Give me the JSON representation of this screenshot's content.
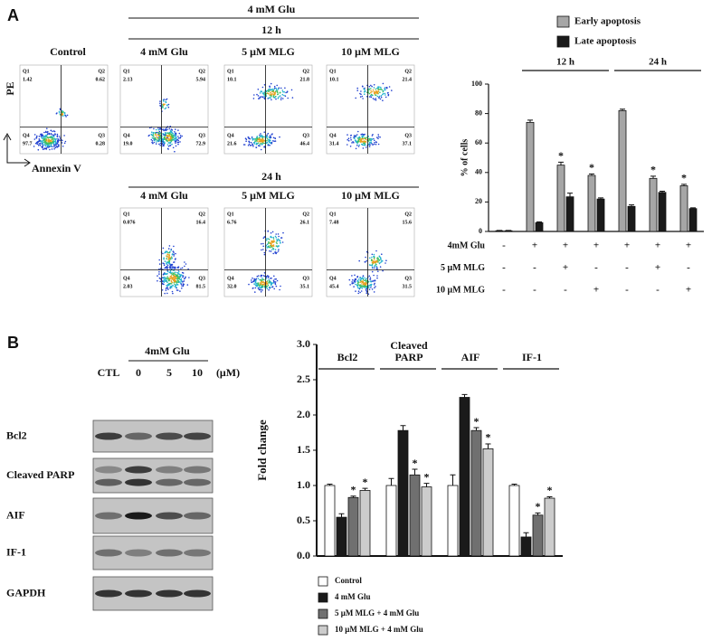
{
  "panel_labels": [
    "A",
    "B"
  ],
  "flow_cytometry": {
    "treatment_header": "4 mM Glu",
    "time_12h": "12 h",
    "time_24h": "24 h",
    "y_axis_label": "PE",
    "x_axis_label": "Annexin V",
    "plots": [
      {
        "title": "Control",
        "quadrants": [
          {
            "name": "Q1",
            "value": "1.42"
          },
          {
            "name": "Q2",
            "value": "0.62"
          },
          {
            "name": "Q4",
            "value": "97.7"
          },
          {
            "name": "Q3",
            "value": "0.28"
          }
        ]
      },
      {
        "title": "4 mM Glu",
        "quadrants": [
          {
            "name": "Q1",
            "value": "2.13"
          },
          {
            "name": "Q2",
            "value": "5.94"
          },
          {
            "name": "Q4",
            "value": "19.0"
          },
          {
            "name": "Q3",
            "value": "72.9"
          }
        ]
      },
      {
        "title": "5 μM MLG",
        "quadrants": [
          {
            "name": "Q1",
            "value": "10.1"
          },
          {
            "name": "Q2",
            "value": "21.8"
          },
          {
            "name": "Q4",
            "value": "21.6"
          },
          {
            "name": "Q3",
            "value": "46.4"
          }
        ]
      },
      {
        "title": "10 μM MLG",
        "quadrants": [
          {
            "name": "Q1",
            "value": "10.1"
          },
          {
            "name": "Q2",
            "value": "21.4"
          },
          {
            "name": "Q4",
            "value": "31.4"
          },
          {
            "name": "Q3",
            "value": "37.1"
          }
        ]
      },
      {
        "title": "4 mM Glu",
        "quadrants": [
          {
            "name": "Q1",
            "value": "0.076"
          },
          {
            "name": "Q2",
            "value": "16.4"
          },
          {
            "name": "Q4",
            "value": "2.03"
          },
          {
            "name": "Q3",
            "value": "81.5"
          }
        ]
      },
      {
        "title": "5 μM MLG",
        "quadrants": [
          {
            "name": "Q1",
            "value": "6.76"
          },
          {
            "name": "Q2",
            "value": "26.1"
          },
          {
            "name": "Q4",
            "value": "32.0"
          },
          {
            "name": "Q3",
            "value": "35.1"
          }
        ]
      },
      {
        "title": "10 μM MLG",
        "quadrants": [
          {
            "name": "Q1",
            "value": "7.48"
          },
          {
            "name": "Q2",
            "value": "15.6"
          },
          {
            "name": "Q4",
            "value": "45.4"
          },
          {
            "name": "Q3",
            "value": "31.5"
          }
        ]
      }
    ]
  },
  "western_blot": {
    "treatment": "4mM Glu",
    "lanes": [
      "CTL",
      "0",
      "5",
      "10"
    ],
    "unit": "(μM)",
    "proteins": [
      "Bcl2",
      "Cleaved PARP",
      "AIF",
      "IF-1",
      "GAPDH"
    ]
  },
  "chart_data": [
    {
      "type": "bar",
      "y_label": "% of cells",
      "categories": [
        null,
        null,
        null,
        null,
        null,
        null,
        null
      ],
      "group_labels": [
        "12 h",
        "24 h"
      ],
      "legend": "top",
      "ylim": [
        0,
        100
      ],
      "yticks": [
        0,
        20,
        40,
        60,
        80,
        100
      ],
      "series": [
        {
          "name": "Early apoptosis",
          "color": "#a6a6a6",
          "values": [
            0.5,
            74,
            45,
            38,
            82,
            36,
            31
          ],
          "errors": [
            0.2,
            1.5,
            2,
            1,
            1,
            1.5,
            1
          ],
          "markers": [
            null,
            null,
            "*",
            "*",
            null,
            "*",
            "*"
          ]
        },
        {
          "name": "Late apoptosis",
          "color": "#1a1a1a",
          "values": [
            0.5,
            6,
            23.5,
            22,
            17,
            26.5,
            15.5
          ],
          "errors": [
            0.2,
            0.5,
            2.5,
            0.8,
            1,
            0.8,
            0.5
          ],
          "markers": [
            null,
            null,
            null,
            null,
            null,
            null,
            null
          ]
        }
      ],
      "conditions": [
        {
          "label": "4mM Glu",
          "values": [
            "-",
            "+",
            "+",
            "+",
            "+",
            "+",
            "+"
          ]
        },
        {
          "label": "5 μM MLG",
          "values": [
            "-",
            "-",
            "+",
            "-",
            "-",
            "+",
            "-"
          ]
        },
        {
          "label": "10 μM MLG",
          "values": [
            "-",
            "-",
            "-",
            "+",
            "-",
            "-",
            "+"
          ]
        }
      ]
    },
    {
      "type": "bar",
      "y_label": "Fold change",
      "categories": [
        "Bcl2",
        "Cleaved PARP",
        "AIF",
        "IF-1"
      ],
      "legend": "bottom",
      "ylim": [
        0,
        3
      ],
      "yticks": [
        {
          "value": 0,
          "label": "0.0"
        },
        {
          "value": 0.5,
          "label": "0.5"
        },
        {
          "value": 1,
          "label": "1.0"
        },
        {
          "value": 1.5,
          "label": "1.5"
        },
        {
          "value": 2,
          "label": "2.0"
        },
        {
          "value": 2.5,
          "label": "2.5"
        },
        {
          "value": 3,
          "label": "3.0"
        }
      ],
      "series": [
        {
          "name": "Control",
          "color": "#ffffff",
          "values": [
            1.0,
            1.0,
            1.0,
            1.0
          ],
          "errors": [
            0.02,
            0.1,
            0.15,
            0.02
          ],
          "markers": [
            null,
            null,
            null,
            null
          ]
        },
        {
          "name": "4 mM Glu",
          "color": "#1a1a1a",
          "values": [
            0.55,
            1.78,
            2.25,
            0.27
          ],
          "errors": [
            0.05,
            0.07,
            0.04,
            0.06
          ],
          "markers": [
            null,
            null,
            null,
            null
          ]
        },
        {
          "name": "5 μM MLG + 4 mM Glu",
          "color": "#707070",
          "values": [
            0.83,
            1.15,
            1.78,
            0.58
          ],
          "errors": [
            0.02,
            0.08,
            0.04,
            0.03
          ],
          "markers": [
            "*",
            "*",
            "*",
            "*"
          ]
        },
        {
          "name": "10 μM MLG + 4 mM Glu",
          "color": "#cccccc",
          "values": [
            0.93,
            0.98,
            1.52,
            0.82
          ],
          "errors": [
            0.03,
            0.05,
            0.07,
            0.02
          ],
          "markers": [
            "*",
            "*",
            "*",
            "*"
          ]
        }
      ]
    }
  ]
}
